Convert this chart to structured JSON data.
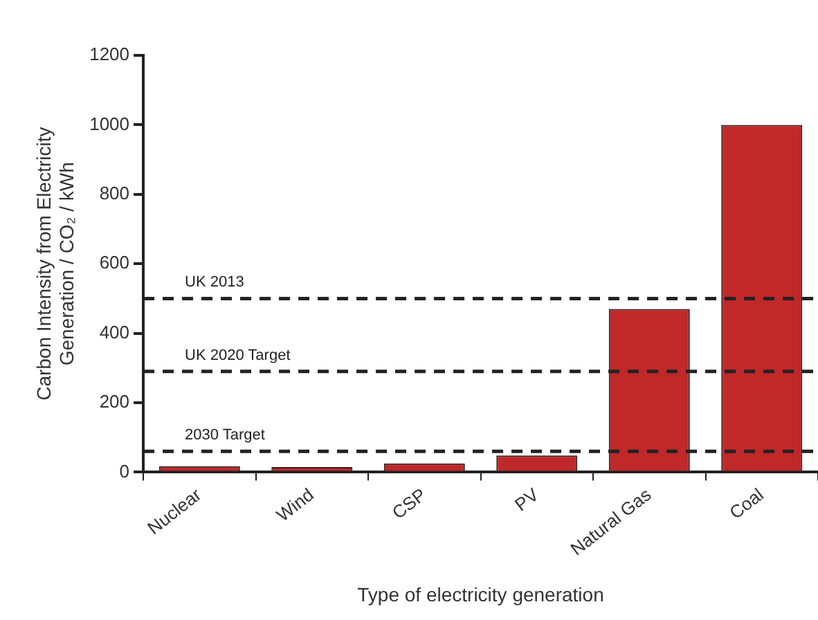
{
  "chart_data": {
    "type": "bar",
    "xlabel": "Type of electricity generation",
    "ylabel": "Carbon Intensity from Electricity Generation / CO₂ / kWh",
    "categories": [
      "Nuclear",
      "Wind",
      "CSP",
      "PV",
      "Natural Gas",
      "Coal"
    ],
    "series": [
      {
        "color": "#c0282a",
        "values": [
          17,
          15,
          25,
          48,
          470,
          1000
        ]
      }
    ],
    "ylim": [
      0,
      1200
    ],
    "yticks": [
      0,
      200,
      400,
      600,
      800,
      1000,
      1200
    ],
    "grid": false,
    "legend": false,
    "ref_lines": [
      {
        "axis": "y",
        "value": 500,
        "label": "UK 2013",
        "line_style": "dashed",
        "color": "#222222"
      },
      {
        "axis": "y",
        "value": 290,
        "label": "UK 2020 Target",
        "line_style": "dashed",
        "color": "#222222"
      },
      {
        "axis": "y",
        "value": 60,
        "label": "2030 Target",
        "line_style": "dashed",
        "color": "#222222"
      }
    ]
  }
}
